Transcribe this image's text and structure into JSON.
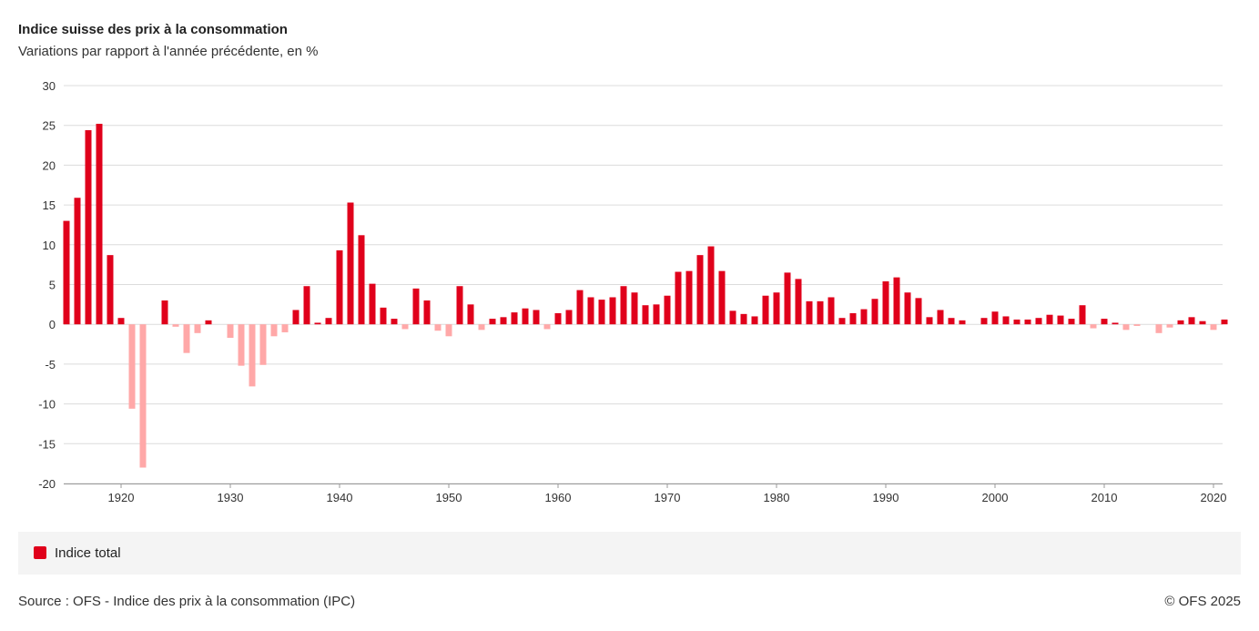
{
  "chart_data": {
    "type": "bar",
    "title": "Indice suisse des prix à la consommation",
    "subtitle": "Variations par rapport à l'année précédente, en %",
    "xlabel": "",
    "ylabel": "",
    "ylim": [
      -20,
      30
    ],
    "yticks": [
      30,
      25,
      20,
      15,
      10,
      5,
      0,
      -5,
      -10,
      -15,
      -20
    ],
    "xticks": [
      1920,
      1930,
      1940,
      1950,
      1960,
      1970,
      1980,
      1990,
      2000,
      2010,
      2020
    ],
    "x_start": 1915,
    "grid": true,
    "legend_position": "bottom",
    "series": [
      {
        "name": "Indice total",
        "values": [
          13.0,
          15.9,
          24.4,
          25.2,
          8.7,
          0.8,
          -10.6,
          -18.0,
          0.0,
          3.0,
          -0.3,
          -3.6,
          -1.1,
          0.5,
          0.0,
          -1.7,
          -5.2,
          -7.8,
          -5.1,
          -1.5,
          -1.0,
          1.8,
          4.8,
          0.2,
          0.8,
          9.3,
          15.3,
          11.2,
          5.1,
          2.1,
          0.7,
          -0.6,
          4.5,
          3.0,
          -0.8,
          -1.5,
          4.8,
          2.5,
          -0.7,
          0.7,
          0.9,
          1.5,
          2.0,
          1.8,
          -0.6,
          1.4,
          1.8,
          4.3,
          3.4,
          3.1,
          3.4,
          4.8,
          4.0,
          2.4,
          2.5,
          3.6,
          6.6,
          6.7,
          8.7,
          9.8,
          6.7,
          1.7,
          1.3,
          1.0,
          3.6,
          4.0,
          6.5,
          5.7,
          2.9,
          2.9,
          3.4,
          0.8,
          1.4,
          1.9,
          3.2,
          5.4,
          5.9,
          4.0,
          3.3,
          0.9,
          1.8,
          0.8,
          0.5,
          0.0,
          0.8,
          1.6,
          1.0,
          0.6,
          0.6,
          0.8,
          1.2,
          1.1,
          0.7,
          2.4,
          -0.5,
          0.7,
          0.2,
          -0.7,
          -0.2,
          0.0,
          -1.1,
          -0.4,
          0.5,
          0.9,
          0.4,
          -0.7,
          0.6
        ]
      }
    ],
    "colors": {
      "positive": "#e0001b",
      "negative": "#ffa8a8"
    }
  },
  "legend": {
    "label": "Indice total"
  },
  "footer": {
    "source": "Source : OFS - Indice des prix à la consommation (IPC)",
    "copyright": "© OFS 2025"
  }
}
